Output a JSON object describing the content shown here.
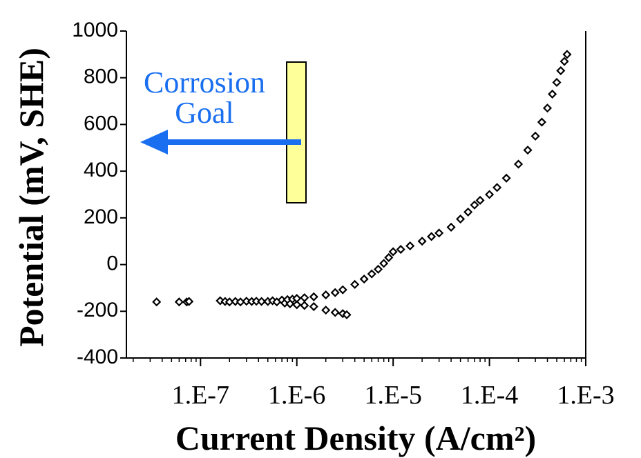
{
  "chart_data": {
    "type": "scatter",
    "marker": "diamond",
    "color": "#000000",
    "xscale": "log",
    "minor_ticks": true,
    "xlabel": "Current Density (A/cm²)",
    "ylabel": "Potential (mV, SHE)",
    "annotations": [
      "Corrosion",
      "Goal"
    ],
    "xlim": [
      1.7e-08,
      0.001
    ],
    "ylim": [
      -400,
      1000
    ],
    "xticks": [
      {
        "value": 1e-07,
        "label": "1.E-7"
      },
      {
        "value": 1e-06,
        "label": "1.E-6"
      },
      {
        "value": 1e-05,
        "label": "1.E-5"
      },
      {
        "value": 0.0001,
        "label": "1.E-4"
      },
      {
        "value": 0.001,
        "label": "1.E-3"
      }
    ],
    "yticks": [
      -400,
      -200,
      0,
      200,
      400,
      600,
      800,
      1000
    ],
    "x": [
      3.5e-08,
      6e-08,
      7.2e-08,
      7.6e-08,
      1.6e-07,
      1.8e-07,
      2e-07,
      2.3e-07,
      2.6e-07,
      3e-07,
      3.4e-07,
      3.8e-07,
      4.3e-07,
      5e-07,
      5.6e-07,
      6.2e-07,
      7e-07,
      7.5e-07,
      8e-07,
      8.5e-07,
      9e-07,
      1e-06,
      1e-06,
      1.2e-06,
      1.5e-06,
      2e-06,
      2.5e-06,
      3e-06,
      4e-06,
      5e-06,
      6e-06,
      7e-06,
      8e-06,
      9e-06,
      1e-05,
      1.2e-05,
      1.5e-05,
      2e-05,
      2.5e-05,
      3e-05,
      4e-05,
      5e-05,
      6e-05,
      7e-05,
      8e-05,
      0.0001,
      0.00012,
      0.00015,
      0.0002,
      0.00025,
      0.0003,
      0.00035,
      0.0004,
      0.00045,
      0.0005,
      0.00055,
      0.0006,
      0.00064,
      1.2e-06,
      1.5e-06,
      2e-06,
      2.5e-06,
      3e-06,
      3.3e-06
    ],
    "y": [
      -160,
      -160,
      -160,
      -158,
      -155,
      -158,
      -160,
      -158,
      -160,
      -157,
      -158,
      -157,
      -158,
      -158,
      -155,
      -160,
      -152,
      -165,
      -150,
      -168,
      -148,
      -172,
      -145,
      -142,
      -138,
      -130,
      -120,
      -108,
      -85,
      -62,
      -40,
      -20,
      5,
      30,
      55,
      65,
      80,
      100,
      120,
      135,
      160,
      195,
      225,
      255,
      275,
      300,
      330,
      370,
      430,
      490,
      550,
      610,
      670,
      730,
      780,
      830,
      870,
      900,
      -175,
      -180,
      -195,
      -205,
      -210,
      -215
    ]
  }
}
